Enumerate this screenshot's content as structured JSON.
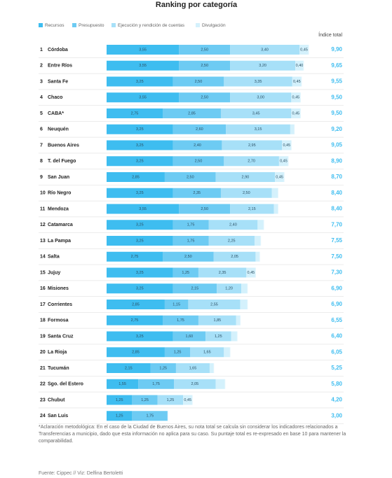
{
  "chart_data": {
    "type": "stacked-bar-horizontal",
    "title": "Ranking por categoría",
    "total_header": "Índice total",
    "ranks": [
      1,
      2,
      3,
      4,
      5,
      6,
      7,
      8,
      9,
      10,
      11,
      12,
      13,
      14,
      15,
      16,
      17,
      18,
      19,
      20,
      21,
      22,
      23,
      24
    ],
    "categories": [
      "Córdoba",
      "Entre Ríos",
      "Santa Fe",
      "Chaco",
      "CABA*",
      "Neuquén",
      "Buenos Aires",
      "T. del Fuego",
      "San Juan",
      "Río Negro",
      "Mendoza",
      "Catamarca",
      "La Pampa",
      "Salta",
      "Jujuy",
      "Misiones",
      "Corrientes",
      "Formosa",
      "Santa Cruz",
      "La Rioja",
      "Tucumán",
      "Sgo. del Estero",
      "Chubut",
      "San Luis"
    ],
    "xlim": [
      0,
      10
    ],
    "series": [
      {
        "name": "Recursos",
        "color": "#3ebdf0",
        "values": [
          3.55,
          3.55,
          3.25,
          3.55,
          2.75,
          3.25,
          3.25,
          3.25,
          2.85,
          3.25,
          3.55,
          3.25,
          3.25,
          2.75,
          3.25,
          3.25,
          2.85,
          2.75,
          3.25,
          2.85,
          2.15,
          1.55,
          1.25,
          1.25
        ],
        "value_labels": [
          "3,55",
          "3,55",
          "3,25",
          "3,55",
          "2,75",
          "3,25",
          "3,25",
          "3,25",
          "2,85",
          "3,25",
          "3,55",
          "3,25",
          "3,25",
          "2,75",
          "3,25",
          "3,25",
          "2,85",
          "2,75",
          "3,25",
          "2,85",
          "2,15",
          "1,55",
          "1,25",
          "1,25"
        ]
      },
      {
        "name": "Presupuesto",
        "color": "#6dcbf3",
        "values": [
          2.5,
          2.5,
          2.5,
          2.5,
          2.85,
          2.6,
          2.4,
          2.5,
          2.5,
          2.35,
          2.5,
          1.75,
          1.75,
          2.5,
          1.25,
          2.15,
          1.15,
          1.75,
          1.6,
          1.25,
          1.25,
          1.75,
          1.25,
          1.75
        ],
        "value_labels": [
          "2,50",
          "2,50",
          "2,50",
          "2,50",
          "2,85",
          "2,60",
          "2,40",
          "2,50",
          "2,50",
          "2,35",
          "2,50",
          "1,75",
          "1,75",
          "2,50",
          "1,25",
          "2,15",
          "1,15",
          "1,75",
          "1,60",
          "1,25",
          "1,25",
          "1,75",
          "1,25",
          "1,75"
        ]
      },
      {
        "name": "Ejecución y rendición de cuentas",
        "color": "#a7e0f8",
        "values": [
          3.4,
          3.2,
          3.35,
          3.0,
          3.45,
          3.15,
          2.95,
          2.7,
          2.9,
          2.5,
          2.15,
          2.4,
          2.25,
          2.05,
          2.35,
          1.2,
          2.55,
          1.85,
          1.25,
          1.65,
          1.65,
          2.05,
          1.25,
          0
        ],
        "value_labels": [
          "3,40",
          "3,20",
          "3,35",
          "3,00",
          "3,45",
          "3,15",
          "2,95",
          "2,70",
          "2,90",
          "2,50",
          "2,15",
          "2,40",
          "2,25",
          "2,05",
          "2,35",
          "1,20",
          "2,55",
          "1,85",
          "1,25",
          "1,65",
          "1,65",
          "2,05",
          "1,25",
          null
        ]
      },
      {
        "name": "Divulgación",
        "color": "#d4f1fc",
        "values": [
          0.45,
          0.4,
          0.45,
          0.45,
          0.45,
          0.2,
          0.45,
          0.45,
          0.45,
          0.3,
          0.2,
          0.3,
          0.3,
          0.2,
          0.45,
          0.3,
          0.35,
          0.2,
          0.3,
          0.3,
          0.2,
          0.45,
          0.45,
          0
        ],
        "value_labels": [
          "0,45",
          "0,40",
          "0,45",
          "0,45",
          "0,45",
          null,
          "0,45",
          "0,45",
          "0,45",
          null,
          null,
          null,
          null,
          null,
          "0,45",
          null,
          null,
          null,
          null,
          null,
          null,
          null,
          "0,45",
          null
        ]
      }
    ],
    "totals": {
      "values": [
        9.9,
        9.65,
        9.55,
        9.5,
        9.5,
        9.2,
        9.05,
        8.9,
        8.7,
        8.4,
        8.4,
        7.7,
        7.55,
        7.5,
        7.3,
        6.9,
        6.9,
        6.55,
        6.4,
        6.05,
        5.25,
        5.8,
        4.2,
        3.0
      ],
      "value_labels": [
        "9,90",
        "9,65",
        "9,55",
        "9,50",
        "9,50",
        "9,20",
        "9,05",
        "8,90",
        "8,70",
        "8,40",
        "8,40",
        "7,70",
        "7,55",
        "7,50",
        "7,30",
        "6,90",
        "6,90",
        "6,55",
        "6,40",
        "6,05",
        "5,25",
        "5,80",
        "4,20",
        "3,00"
      ]
    },
    "note": "*Aclaración metodológica: En el caso de la Ciudad de Buenos Aires, su nota total se calcula sin considerar los indicadores relacionados a Transferencias a municipio, dado que esta información no aplica para su caso. Su puntaje total es re-expresado en base 10 para mantener la comparabilidad.",
    "source": "Fuente: Cippec // Viz: Delfina Bertoletti"
  }
}
